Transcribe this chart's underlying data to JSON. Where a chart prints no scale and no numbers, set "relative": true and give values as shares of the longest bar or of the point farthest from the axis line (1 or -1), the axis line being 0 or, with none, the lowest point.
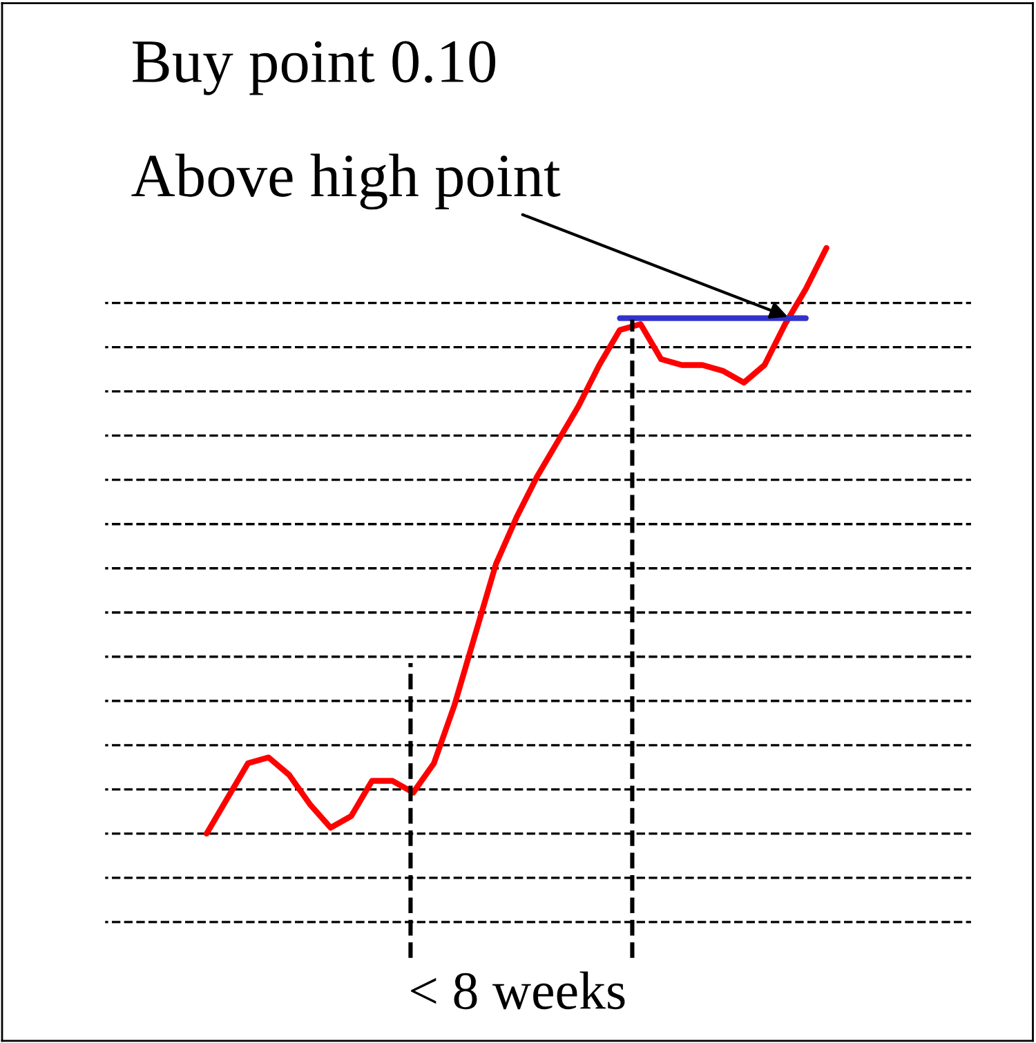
{
  "chart_data": {
    "type": "line",
    "relative": true,
    "title": "Buy point 0.10",
    "categories": [
      null,
      null,
      null,
      null,
      null,
      null,
      null,
      null,
      null,
      null,
      null,
      null,
      null,
      null,
      null,
      null,
      null,
      null,
      null,
      null,
      null,
      null,
      null,
      null,
      null,
      null,
      null,
      null,
      null,
      null,
      null
    ],
    "series": [
      {
        "color": "#ff0000",
        "values": [
          0,
          0.06,
          0.12,
          0.13,
          0.1,
          0.05,
          0.01,
          0.03,
          0.09,
          0.09,
          0.07,
          0.12,
          0.22,
          0.34,
          0.46,
          0.54,
          0.61,
          0.67,
          0.73,
          0.8,
          0.86,
          0.87,
          0.81,
          0.8,
          0.8,
          0.79,
          0.77,
          0.8,
          0.87,
          0.93,
          1
        ]
      },
      {
        "color": "#3333cc",
        "values": [
          null,
          null,
          null,
          null,
          null,
          null,
          null,
          null,
          null,
          null,
          null,
          null,
          null,
          null,
          null,
          null,
          null,
          null,
          null,
          null,
          0.88,
          0.88,
          0.88,
          0.88,
          0.88,
          0.88,
          0.88,
          0.88,
          0.88,
          0.88,
          null
        ]
      }
    ],
    "annotations": [
      "Above high point",
      "< 8 weeks"
    ],
    "grid": "y",
    "legend": false,
    "marker": "none",
    "line_style": "solid"
  }
}
